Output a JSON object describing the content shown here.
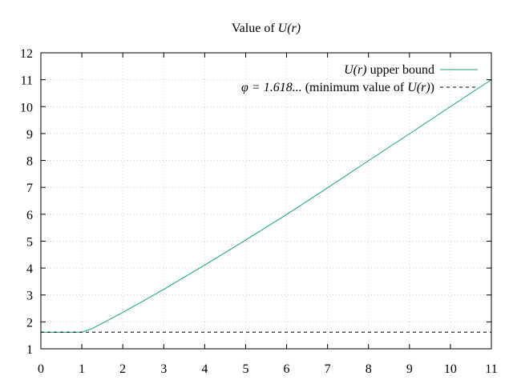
{
  "chart_data": {
    "type": "line",
    "title": {
      "prefix": "Value of ",
      "math": "U(r)"
    },
    "xlabel": "",
    "ylabel": "",
    "xlim": [
      0,
      11
    ],
    "ylim": [
      1,
      12
    ],
    "xticks": [
      "0",
      "1",
      "2",
      "3",
      "4",
      "5",
      "6",
      "7",
      "8",
      "9",
      "10",
      "11"
    ],
    "yticks": [
      "1",
      "2",
      "3",
      "4",
      "5",
      "6",
      "7",
      "8",
      "9",
      "10",
      "11",
      "12"
    ],
    "grid": true,
    "legend_position": "top-right",
    "legend": [
      {
        "math": "U(r)",
        "text": " upper bound"
      },
      {
        "math_prefix": "φ = 1.618...",
        "text": " (minimum value of ",
        "math": "U(r)",
        "suffix": ")"
      }
    ],
    "series": [
      {
        "color": "#1a9e77",
        "style": "solid",
        "points": [
          [
            0,
            1.618
          ],
          [
            1,
            1.618
          ],
          [
            1.25,
            1.75
          ],
          [
            1.5,
            1.95
          ],
          [
            2,
            2.35
          ],
          [
            2.5,
            2.78
          ],
          [
            3,
            3.21
          ],
          [
            3.5,
            3.66
          ],
          [
            4,
            4.11
          ],
          [
            5,
            5.04
          ],
          [
            6,
            5.99
          ],
          [
            7,
            6.98
          ],
          [
            8,
            7.99
          ],
          [
            9,
            8.99
          ],
          [
            10,
            10.0
          ],
          [
            11,
            11.0
          ]
        ]
      },
      {
        "color": "#000000",
        "style": "dashed",
        "points": [
          [
            0,
            1.618
          ],
          [
            11,
            1.618
          ]
        ]
      }
    ]
  }
}
